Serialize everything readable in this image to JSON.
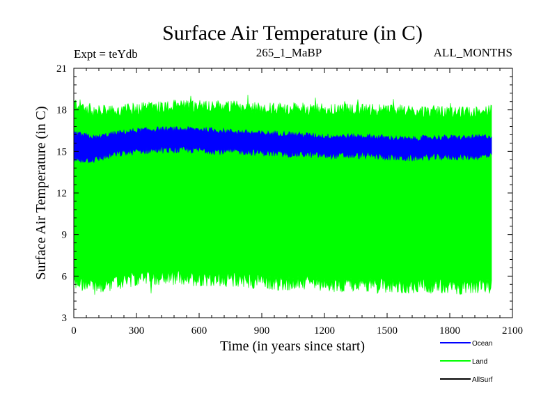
{
  "chart_data": {
    "type": "line",
    "title": "Surface Air Temperature (in C)",
    "subtitle_left": "Expt = teYdb",
    "subtitle_center": "265_1_MaBP",
    "subtitle_right": "ALL_MONTHS",
    "xlabel": "Time (in years since start)",
    "ylabel": "Surface Air Temperature (in C)",
    "xlim": [
      0,
      2100
    ],
    "ylim": [
      3,
      21
    ],
    "xticks": [
      "0",
      "300",
      "600",
      "900",
      "1200",
      "1500",
      "1800",
      "2100"
    ],
    "yticks": [
      "3",
      "6",
      "9",
      "12",
      "15",
      "18",
      "21"
    ],
    "x_data_range": [
      0,
      2000
    ],
    "series": [
      {
        "name": "Land",
        "color": "#00ff00",
        "band": true,
        "x": [
          0,
          100,
          200,
          300,
          400,
          500,
          600,
          700,
          800,
          900,
          1000,
          1100,
          1200,
          1300,
          1400,
          1500,
          1600,
          1700,
          1800,
          1900,
          2000
        ],
        "low": [
          5.5,
          5.2,
          5.5,
          5.8,
          5.9,
          5.9,
          5.8,
          5.8,
          5.7,
          5.6,
          5.5,
          5.5,
          5.4,
          5.4,
          5.4,
          5.3,
          5.3,
          5.3,
          5.2,
          5.2,
          5.3
        ],
        "high": [
          18.5,
          17.9,
          17.9,
          18.1,
          18.2,
          18.3,
          18.3,
          18.3,
          18.2,
          18.1,
          18.1,
          18.1,
          18.0,
          18.0,
          18.0,
          18.0,
          17.9,
          17.9,
          17.8,
          17.8,
          17.9
        ]
      },
      {
        "name": "Ocean",
        "color": "#0000ff",
        "band": true,
        "x": [
          0,
          100,
          200,
          300,
          400,
          500,
          600,
          700,
          800,
          900,
          1000,
          1100,
          1200,
          1300,
          1400,
          1500,
          1600,
          1700,
          1800,
          1900,
          2000
        ],
        "low": [
          14.4,
          14.4,
          14.8,
          15.0,
          15.1,
          15.1,
          15.1,
          15.0,
          15.0,
          14.9,
          14.8,
          14.8,
          14.7,
          14.7,
          14.7,
          14.6,
          14.5,
          14.6,
          14.6,
          14.6,
          14.7
        ],
        "high": [
          16.3,
          16.0,
          16.3,
          16.5,
          16.6,
          16.6,
          16.6,
          16.5,
          16.4,
          16.3,
          16.3,
          16.2,
          16.1,
          16.1,
          16.1,
          16.0,
          15.9,
          16.0,
          16.0,
          16.0,
          16.1
        ]
      },
      {
        "name": "AllSurf",
        "color": "#000000",
        "band": false
      }
    ],
    "legend_position": "bottom-right"
  }
}
